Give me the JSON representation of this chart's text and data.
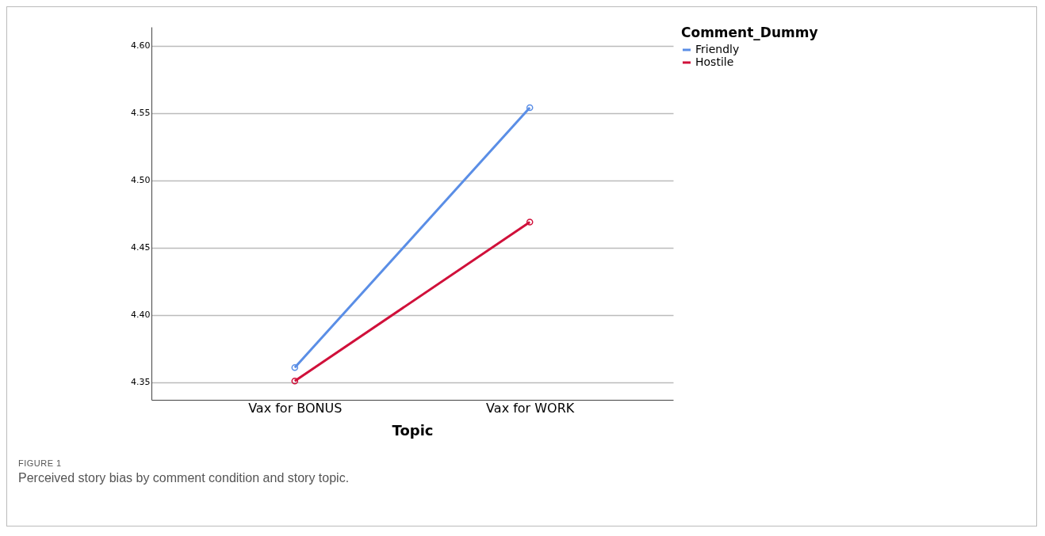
{
  "chart_data": {
    "type": "line",
    "xlabel": "Topic",
    "legend_title": "Comment_Dummy",
    "categories": [
      "Vax for BONUS",
      "Vax for WORK"
    ],
    "series": [
      {
        "name": "Friendly",
        "color": "#5a8ee6",
        "values": [
          4.361,
          4.554
        ]
      },
      {
        "name": "Hostile",
        "color": "#d0103a",
        "values": [
          4.351,
          4.469
        ]
      }
    ],
    "ylim": [
      4.337,
      4.614
    ],
    "yticks": [
      4.35,
      {
        "value": 4.4,
        "label": "4.40"
      },
      4.45,
      {
        "value": 4.5,
        "label": "4.50"
      },
      4.55,
      {
        "value": 4.6,
        "label": "4.60"
      }
    ],
    "grid": "y",
    "legend": "top right",
    "marker": "circle",
    "line_style": "solid",
    "annotations": [
      "FIGURE 1",
      "Perceived story bias by comment condition and story topic."
    ]
  }
}
